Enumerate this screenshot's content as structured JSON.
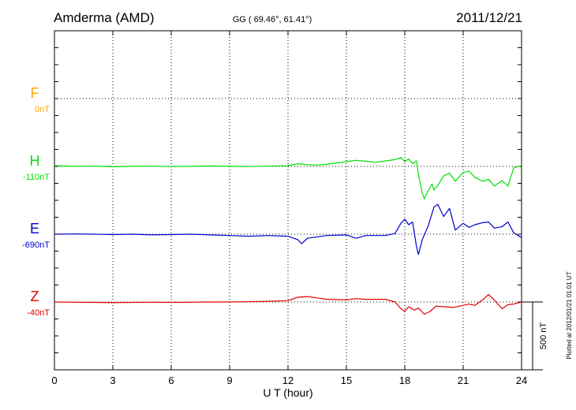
{
  "header": {
    "station": "Amderma (AMD)",
    "coords": "GG ( 69.46°,  61.41°)",
    "date": "2011/12/21"
  },
  "footer_note": "Plotted at 2012/01/21 01:01 UT",
  "chart_data": {
    "type": "line",
    "xlabel": "U T (hour)",
    "xlim": [
      0,
      24
    ],
    "xticks": [
      "0",
      "3",
      "6",
      "9",
      "12",
      "15",
      "18",
      "21",
      "24"
    ],
    "scale_bar_label": "500 nT",
    "scale_bar_nT": 500,
    "series": [
      {
        "name": "F",
        "baseline_label": "0nT",
        "color": "#ffa500",
        "has_data": false,
        "points": []
      },
      {
        "name": "H",
        "baseline_label": "-110nT",
        "color": "#00e000",
        "has_data": true,
        "points": [
          [
            0,
            5
          ],
          [
            1,
            0
          ],
          [
            2,
            2
          ],
          [
            3,
            -3
          ],
          [
            4,
            0
          ],
          [
            5,
            2
          ],
          [
            6,
            -2
          ],
          [
            7,
            0
          ],
          [
            8,
            3
          ],
          [
            9,
            0
          ],
          [
            10,
            -2
          ],
          [
            11,
            2
          ],
          [
            12,
            5
          ],
          [
            12.5,
            20
          ],
          [
            13,
            12
          ],
          [
            13.5,
            10
          ],
          [
            14,
            15
          ],
          [
            15,
            35
          ],
          [
            15.5,
            45
          ],
          [
            16,
            38
          ],
          [
            16.5,
            30
          ],
          [
            17,
            40
          ],
          [
            17.5,
            50
          ],
          [
            17.8,
            65
          ],
          [
            18,
            35
          ],
          [
            18.2,
            55
          ],
          [
            18.4,
            20
          ],
          [
            18.6,
            40
          ],
          [
            18.7,
            -60
          ],
          [
            18.9,
            -200
          ],
          [
            19,
            -240
          ],
          [
            19.2,
            -180
          ],
          [
            19.4,
            -130
          ],
          [
            19.5,
            -175
          ],
          [
            19.7,
            -140
          ],
          [
            20,
            -70
          ],
          [
            20.3,
            -50
          ],
          [
            20.6,
            -110
          ],
          [
            21,
            -45
          ],
          [
            21.3,
            -35
          ],
          [
            21.6,
            -80
          ],
          [
            22,
            -110
          ],
          [
            22.3,
            -95
          ],
          [
            22.6,
            -145
          ],
          [
            23,
            -105
          ],
          [
            23.3,
            -145
          ],
          [
            23.6,
            -10
          ],
          [
            24,
            5
          ]
        ]
      },
      {
        "name": "E",
        "baseline_label": "-690nT",
        "color": "#0000cc",
        "has_data": true,
        "points": [
          [
            0,
            0
          ],
          [
            1,
            2
          ],
          [
            2,
            0
          ],
          [
            3,
            -3
          ],
          [
            4,
            0
          ],
          [
            5,
            -5
          ],
          [
            6,
            -3
          ],
          [
            7,
            0
          ],
          [
            8,
            -5
          ],
          [
            9,
            -10
          ],
          [
            10,
            -15
          ],
          [
            11,
            -10
          ],
          [
            12,
            -15
          ],
          [
            12.5,
            -40
          ],
          [
            12.7,
            -70
          ],
          [
            13,
            -30
          ],
          [
            14,
            -10
          ],
          [
            15,
            -5
          ],
          [
            15.5,
            -30
          ],
          [
            16,
            -10
          ],
          [
            17,
            -10
          ],
          [
            17.5,
            5
          ],
          [
            17.8,
            80
          ],
          [
            18,
            110
          ],
          [
            18.2,
            70
          ],
          [
            18.4,
            90
          ],
          [
            18.6,
            -90
          ],
          [
            18.7,
            -150
          ],
          [
            18.9,
            -40
          ],
          [
            19.2,
            60
          ],
          [
            19.5,
            200
          ],
          [
            19.7,
            220
          ],
          [
            20,
            130
          ],
          [
            20.3,
            190
          ],
          [
            20.6,
            30
          ],
          [
            21,
            80
          ],
          [
            21.3,
            50
          ],
          [
            21.6,
            70
          ],
          [
            22,
            85
          ],
          [
            22.3,
            90
          ],
          [
            22.6,
            45
          ],
          [
            23,
            55
          ],
          [
            23.3,
            90
          ],
          [
            23.6,
            10
          ],
          [
            24,
            -25
          ]
        ]
      },
      {
        "name": "Z",
        "baseline_label": "-40nT",
        "color": "#e00000",
        "has_data": true,
        "points": [
          [
            0,
            0
          ],
          [
            1,
            -2
          ],
          [
            2,
            -3
          ],
          [
            3,
            -5
          ],
          [
            4,
            -3
          ],
          [
            5,
            -2
          ],
          [
            6,
            -3
          ],
          [
            7,
            -2
          ],
          [
            8,
            0
          ],
          [
            9,
            0
          ],
          [
            10,
            2
          ],
          [
            11,
            5
          ],
          [
            12,
            10
          ],
          [
            12.5,
            35
          ],
          [
            13,
            40
          ],
          [
            13.5,
            30
          ],
          [
            14,
            20
          ],
          [
            15,
            15
          ],
          [
            15.5,
            25
          ],
          [
            16,
            20
          ],
          [
            17,
            20
          ],
          [
            17.5,
            0
          ],
          [
            17.8,
            -50
          ],
          [
            18,
            -70
          ],
          [
            18.2,
            -35
          ],
          [
            18.5,
            -60
          ],
          [
            18.7,
            -45
          ],
          [
            19,
            -90
          ],
          [
            19.3,
            -70
          ],
          [
            19.6,
            -30
          ],
          [
            20,
            -35
          ],
          [
            20.5,
            -40
          ],
          [
            21,
            -25
          ],
          [
            21.3,
            -15
          ],
          [
            21.6,
            -25
          ],
          [
            22,
            15
          ],
          [
            22.3,
            55
          ],
          [
            22.6,
            15
          ],
          [
            23,
            -50
          ],
          [
            23.3,
            -20
          ],
          [
            23.6,
            -15
          ],
          [
            24,
            0
          ]
        ]
      }
    ]
  }
}
